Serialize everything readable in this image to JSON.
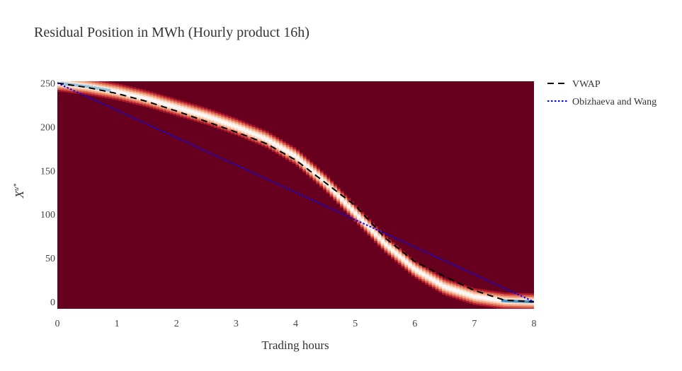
{
  "chart_data": {
    "type": "heatmap",
    "title": "Residual Position in MWh (Hourly product 16h)",
    "xlabel": "Trading hours",
    "ylabel": "X",
    "ylabel_superscript": "u*",
    "xlim": [
      0,
      8
    ],
    "ylim": [
      -8,
      252
    ],
    "x_ticks": [
      0,
      1,
      2,
      3,
      4,
      5,
      6,
      7,
      8
    ],
    "y_ticks": [
      0,
      50,
      100,
      150,
      200,
      250
    ],
    "background_color": "#67001f",
    "band": {
      "description_hidden": true,
      "x": [
        0,
        0.5,
        1,
        1.5,
        2,
        2.5,
        3,
        3.5,
        4,
        4.5,
        5,
        5.5,
        6,
        6.5,
        7,
        7.5,
        8
      ],
      "y": [
        250,
        246,
        240,
        232,
        222,
        212,
        200,
        186,
        166,
        136,
        101,
        66,
        37,
        17,
        6,
        1,
        0
      ]
    },
    "series": [
      {
        "name": "VWAP",
        "style": "dash",
        "color": "#000000",
        "x": [
          0,
          0.5,
          1,
          1.5,
          2,
          2.5,
          3,
          3.5,
          4,
          4.5,
          5,
          5.5,
          6,
          6.5,
          7,
          7.5,
          8
        ],
        "y": [
          250,
          245,
          238,
          229,
          218,
          206,
          194,
          181,
          162,
          136,
          110,
          73,
          46,
          29,
          13,
          2,
          0
        ]
      },
      {
        "name": "Obizhaeva and Wang",
        "style": "dot",
        "color": "#0000ff",
        "x": [
          0,
          8
        ],
        "y": [
          250,
          0
        ]
      }
    ],
    "legend_position": "top-right"
  }
}
